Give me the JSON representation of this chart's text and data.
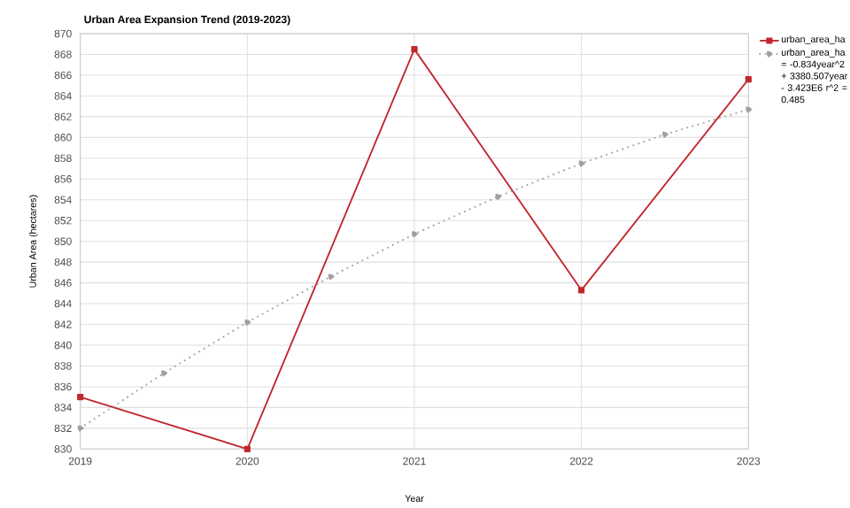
{
  "chart_data": {
    "type": "line",
    "title": "Urban Area Expansion Trend (2019-2023)",
    "xlabel": "Year",
    "ylabel": "Urban Area (hectares)",
    "x": [
      2019,
      2020,
      2021,
      2022,
      2023
    ],
    "series": [
      {
        "name": "urban_area_ha",
        "color": "#c0282d",
        "values": [
          835,
          830,
          868.5,
          845.3,
          865.6
        ],
        "marker": "square",
        "line_style": "solid"
      },
      {
        "name": "urban_area_ha = -0.834year^2 + 3380.507year - 3.423E6 r^2 = 0.485",
        "color": "#a0a0a0",
        "x": [
          2019,
          2019.5,
          2020,
          2020.5,
          2021,
          2021.5,
          2022,
          2022.5,
          2023
        ],
        "values": [
          832,
          837.3,
          842.2,
          846.6,
          850.7,
          854.3,
          857.5,
          860.3,
          862.7
        ],
        "marker": "circle",
        "line_style": "dotted"
      }
    ],
    "xlim": [
      2019,
      2023
    ],
    "xticks": [
      2019,
      2020,
      2021,
      2022,
      2023
    ],
    "ylim": [
      830,
      870
    ],
    "yticks": [
      830,
      832,
      834,
      836,
      838,
      840,
      842,
      844,
      846,
      848,
      850,
      852,
      854,
      856,
      858,
      860,
      862,
      864,
      866,
      868,
      870
    ],
    "grid": true,
    "legend": "top right"
  }
}
